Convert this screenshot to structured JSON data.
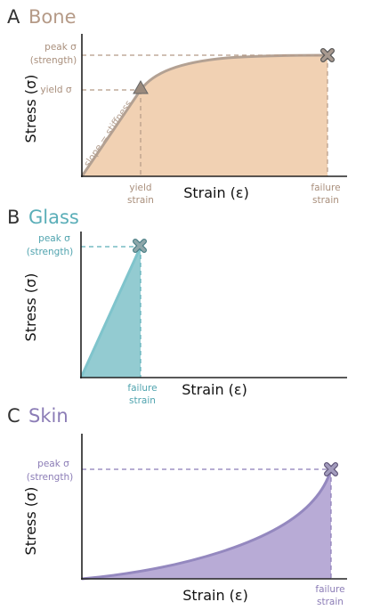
{
  "colors": {
    "bone": "#b59a87",
    "bone_fill": "#f1d1b3",
    "bone_line": "#b3a193",
    "glass": "#5aaeb8",
    "glass_fill": "#93cbd1",
    "glass_line": "#7fc4cc",
    "skin": "#8b7cb6",
    "skin_fill": "#b8abd6",
    "skin_line": "#9488bf",
    "axis": "#222222",
    "marker": "#888888"
  },
  "panel_a": {
    "letter": "A",
    "title": "Bone",
    "ylabel": "Stress (σ)",
    "xlabel": "Strain (ε)",
    "peak_label_1": "peak σ",
    "peak_label_2": "(strength)",
    "yield_label": "yield σ",
    "slope_label": "slope = stiffness",
    "yield_strain_1": "yield",
    "yield_strain_2": "strain",
    "failure_1": "failure",
    "failure_2": "strain",
    "yield_marker": "triangle-icon",
    "failure_marker": "x-icon"
  },
  "panel_b": {
    "letter": "B",
    "title": "Glass",
    "ylabel": "Stress (σ)",
    "xlabel": "Strain (ε)",
    "peak_label_1": "peak σ",
    "peak_label_2": "(strength)",
    "failure_1": "failure",
    "failure_2": "strain",
    "failure_marker": "x-icon"
  },
  "panel_c": {
    "letter": "C",
    "title": "Skin",
    "ylabel": "Stress (σ)",
    "xlabel": "Strain (ε)",
    "peak_label_1": "peak σ",
    "peak_label_2": "(strength)",
    "failure_1": "failure",
    "failure_2": "strain",
    "failure_marker": "x-icon"
  }
}
